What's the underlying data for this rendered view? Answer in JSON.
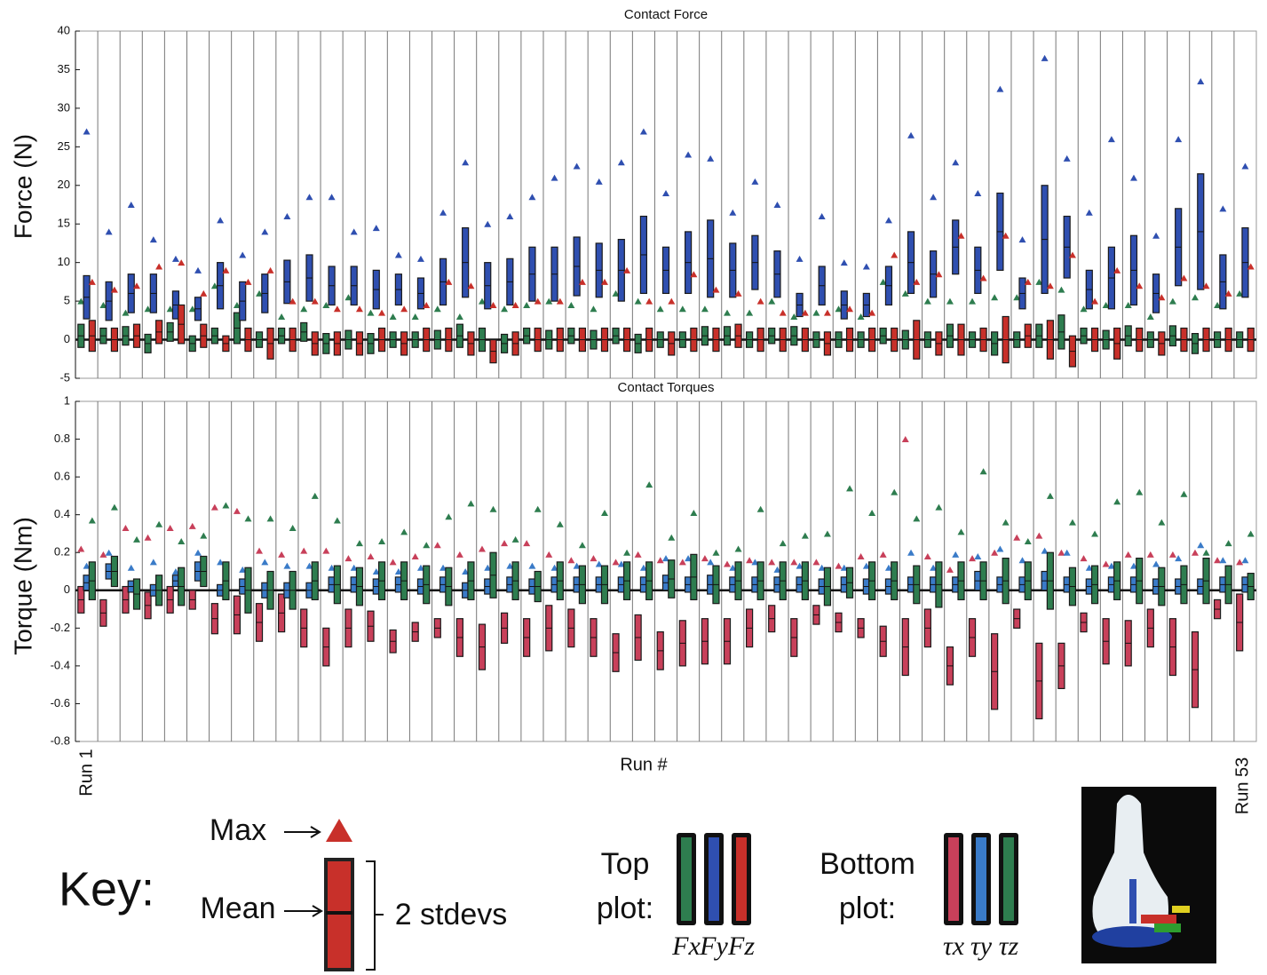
{
  "chart_data": [
    {
      "type": "box",
      "title": "Contact Force",
      "y_label": "Force (N)",
      "x_label": "Run #",
      "ylim": [
        -5,
        40
      ],
      "yticks": [
        40,
        35,
        30,
        25,
        20,
        15,
        10,
        5,
        0,
        -5
      ],
      "zero_line": 0,
      "categories": [
        "Run 1",
        null,
        null,
        null,
        null,
        null,
        null,
        null,
        null,
        null,
        null,
        null,
        null,
        null,
        null,
        null,
        null,
        null,
        null,
        null,
        null,
        null,
        null,
        null,
        null,
        null,
        null,
        null,
        null,
        null,
        null,
        null,
        null,
        null,
        null,
        null,
        null,
        null,
        null,
        null,
        null,
        null,
        null,
        null,
        null,
        null,
        null,
        null,
        null,
        null,
        null,
        null,
        "Run 53"
      ],
      "series": [
        {
          "name": "Fx",
          "color": "#2e7d4f",
          "mean": [
            0.5,
            0.5,
            0.5,
            -0.5,
            1,
            -0.5,
            0.5,
            1.5,
            0,
            0.5,
            1,
            -0.5,
            0,
            -0.5,
            0,
            0,
            0,
            0.5,
            0,
            -0.5,
            0.5,
            0,
            0.5,
            0,
            0.5,
            -0.5,
            0,
            0,
            0.5,
            0.5,
            0,
            0.5,
            0.5,
            0,
            0,
            0,
            0.5,
            0,
            0,
            0.5,
            0,
            -0.5,
            0,
            0.5,
            1,
            0.5,
            0,
            0.5,
            0,
            0.5,
            -0.5,
            0,
            0
          ],
          "stdev": [
            1.5,
            1,
            1.2,
            1.2,
            1.2,
            1,
            1,
            2,
            1,
            1,
            1.2,
            1.3,
            1.2,
            1.3,
            1,
            1,
            1.2,
            1.5,
            1.5,
            1.2,
            1,
            1.2,
            1,
            1.2,
            1,
            1.2,
            1,
            1,
            1.2,
            1.2,
            1,
            1,
            1.2,
            1,
            1,
            1,
            1,
            1.2,
            1,
            1.5,
            1,
            1.5,
            1,
            1.5,
            2.2,
            1,
            1.2,
            1.3,
            1,
            1.3,
            1.3,
            1,
            1
          ],
          "max": [
            5,
            4.5,
            3.5,
            4,
            4,
            4,
            7,
            4.5,
            6,
            3,
            4,
            4.5,
            5.5,
            3.5,
            3,
            3,
            4,
            3,
            5,
            4,
            4.5,
            5,
            4.5,
            4,
            6,
            5,
            4,
            4,
            4,
            3.5,
            3.5,
            5,
            3,
            3.5,
            4,
            3,
            7.5,
            6,
            5,
            5,
            5,
            5.5,
            5.5,
            7.5,
            6.5,
            4,
            4.5,
            4.5,
            3,
            5,
            5.5,
            4.5,
            6
          ]
        },
        {
          "name": "Fy",
          "color": "#2f4fb0",
          "mean": [
            5.5,
            5,
            6,
            6,
            4.5,
            4,
            7,
            5,
            6,
            7.5,
            8,
            7,
            7,
            6.5,
            6.5,
            6,
            7.5,
            10,
            7,
            7.5,
            8.5,
            8.5,
            9.5,
            9,
            9,
            11,
            9,
            10,
            10.5,
            9,
            10,
            8.5,
            4.5,
            7,
            4.5,
            4.5,
            7,
            10,
            8.5,
            12,
            9,
            14,
            6,
            13,
            12,
            6.5,
            8,
            9,
            6,
            12,
            14,
            7.5,
            10
          ],
          "stdev": [
            2.8,
            2.5,
            2.5,
            2.5,
            1.8,
            1.5,
            3,
            2.5,
            2.5,
            2.8,
            3,
            2.5,
            2.5,
            2.5,
            2,
            2,
            3,
            4.5,
            3,
            3,
            3.5,
            3.5,
            3.8,
            3.5,
            4,
            5,
            3,
            4,
            5,
            3.5,
            3.5,
            3,
            1.5,
            2.5,
            1.8,
            1.5,
            2.5,
            4,
            3,
            3.5,
            3,
            5,
            2,
            7,
            4,
            2.5,
            4,
            4.5,
            2.5,
            5,
            7.5,
            3.5,
            4.5
          ],
          "max": [
            27,
            14,
            17.5,
            13,
            10.5,
            9,
            15.5,
            11,
            14,
            16,
            18.5,
            18.5,
            14,
            14.5,
            11,
            10.5,
            16.5,
            23,
            15,
            16,
            18.5,
            21,
            22.5,
            20.5,
            23,
            27,
            19,
            24,
            23.5,
            16.5,
            20.5,
            17.5,
            10.5,
            16,
            10,
            9.5,
            15.5,
            26.5,
            18.5,
            23,
            19,
            32.5,
            13,
            36.5,
            23.5,
            16.5,
            26,
            21,
            13.5,
            26,
            33.5,
            17,
            22.5
          ]
        },
        {
          "name": "Fz",
          "color": "#c8302a",
          "mean": [
            0.5,
            0,
            0.5,
            1,
            2,
            0.5,
            -0.5,
            0,
            -0.5,
            0,
            -0.5,
            -0.5,
            -0.5,
            0,
            -0.5,
            0,
            0,
            -0.5,
            -1.5,
            -0.5,
            0,
            0,
            0,
            0,
            0,
            0,
            -0.5,
            0,
            0,
            0.5,
            0,
            0,
            0,
            -0.5,
            0,
            0,
            0,
            0,
            -0.5,
            0,
            0,
            0,
            0.5,
            0,
            -1.5,
            0,
            -0.5,
            0,
            -0.5,
            0,
            0,
            0,
            0
          ],
          "stdev": [
            2,
            1.5,
            1.5,
            1.5,
            2.5,
            1.5,
            1,
            1.5,
            2,
            1.5,
            1.5,
            1.5,
            1.5,
            1.5,
            1.5,
            1.5,
            1.5,
            1.5,
            1.5,
            1.5,
            1.5,
            1.5,
            1.5,
            1.5,
            1.5,
            1.5,
            1.5,
            1.5,
            1.5,
            1.5,
            1.5,
            1.5,
            1.5,
            1.5,
            1.5,
            1.5,
            1.5,
            2.5,
            1.5,
            2,
            1.5,
            3,
            1.5,
            2.5,
            2,
            1.5,
            2,
            1.5,
            1.5,
            1.5,
            1.5,
            1.5,
            1.5
          ],
          "max": [
            7.5,
            6.5,
            7,
            9.5,
            10,
            6,
            9,
            7.5,
            9,
            5,
            5,
            4,
            4,
            3.5,
            4,
            4.5,
            7.5,
            7,
            4.5,
            4.5,
            5,
            5,
            7.5,
            7.5,
            9,
            5,
            5,
            8.5,
            6.5,
            6,
            5,
            3.5,
            3.5,
            3.5,
            4,
            3.5,
            11,
            7.5,
            8.5,
            13.5,
            8,
            13.5,
            7.5,
            7,
            11,
            5,
            9,
            7,
            5.5,
            8,
            7,
            6,
            9.5
          ]
        }
      ]
    },
    {
      "type": "box",
      "title": "Contact Torques",
      "y_label": "Torque (Nm)",
      "ylim": [
        -0.8,
        1
      ],
      "yticks": [
        1,
        0.8,
        0.6,
        0.4,
        0.2,
        0,
        -0.2,
        -0.4,
        -0.6,
        -0.8
      ],
      "zero_line": 0,
      "series": [
        {
          "name": "τx",
          "color": "#c8405a",
          "mean": [
            -0.05,
            -0.12,
            -0.05,
            -0.08,
            -0.05,
            -0.05,
            -0.15,
            -0.13,
            -0.17,
            -0.12,
            -0.2,
            -0.3,
            -0.2,
            -0.19,
            -0.27,
            -0.22,
            -0.2,
            -0.25,
            -0.3,
            -0.2,
            -0.25,
            -0.2,
            -0.2,
            -0.25,
            -0.33,
            -0.25,
            -0.32,
            -0.28,
            -0.27,
            -0.27,
            -0.2,
            -0.15,
            -0.25,
            -0.13,
            -0.17,
            -0.2,
            -0.27,
            -0.3,
            -0.2,
            -0.4,
            -0.25,
            -0.43,
            -0.15,
            -0.48,
            -0.4,
            -0.17,
            -0.27,
            -0.28,
            -0.2,
            -0.3,
            -0.42,
            -0.1,
            -0.17
          ],
          "stdev": [
            0.07,
            0.07,
            0.07,
            0.07,
            0.07,
            0.05,
            0.08,
            0.1,
            0.1,
            0.1,
            0.1,
            0.1,
            0.1,
            0.08,
            0.06,
            0.05,
            0.05,
            0.1,
            0.12,
            0.08,
            0.1,
            0.12,
            0.1,
            0.1,
            0.1,
            0.12,
            0.1,
            0.12,
            0.12,
            0.12,
            0.1,
            0.07,
            0.1,
            0.05,
            0.05,
            0.05,
            0.08,
            0.15,
            0.1,
            0.1,
            0.1,
            0.2,
            0.05,
            0.2,
            0.12,
            0.05,
            0.12,
            0.12,
            0.1,
            0.15,
            0.2,
            0.05,
            0.15
          ],
          "max": [
            0.22,
            0.19,
            0.33,
            0.28,
            0.33,
            0.34,
            0.44,
            0.42,
            0.21,
            0.19,
            0.21,
            0.21,
            0.17,
            0.18,
            0.15,
            0.18,
            0.24,
            0.19,
            0.22,
            0.25,
            0.25,
            0.19,
            0.16,
            0.17,
            0.15,
            0.19,
            0.16,
            0.15,
            0.17,
            0.14,
            0.16,
            0.15,
            0.15,
            0.15,
            0.13,
            0.18,
            0.19,
            0.8,
            0.18,
            0.11,
            0.17,
            0.2,
            0.28,
            0.29,
            0.2,
            0.17,
            0.14,
            0.19,
            0.19,
            0.19,
            0.2,
            0.16,
            0.15
          ]
        },
        {
          "name": "τy",
          "color": "#3a7bc8",
          "mean": [
            0.04,
            0.1,
            0.02,
            0,
            0.05,
            0.1,
            0,
            0.02,
            0,
            0,
            0,
            0.03,
            0.03,
            0.02,
            0.03,
            0.02,
            0.03,
            0,
            0.02,
            0.03,
            0.02,
            0.03,
            0.03,
            0.03,
            0.03,
            0.03,
            0.04,
            0.03,
            0.03,
            0.03,
            0.03,
            0.03,
            0.03,
            0.02,
            0.03,
            0.02,
            0.02,
            0.03,
            0.03,
            0.03,
            0.05,
            0.03,
            0.03,
            0.05,
            0.03,
            0.02,
            0.03,
            0.03,
            0.02,
            0.02,
            0.02,
            0.03,
            0.03
          ],
          "stdev": [
            0.04,
            0.04,
            0.03,
            0.03,
            0.03,
            0.05,
            0.03,
            0.04,
            0.04,
            0.04,
            0.04,
            0.04,
            0.04,
            0.04,
            0.04,
            0.04,
            0.04,
            0.04,
            0.04,
            0.04,
            0.04,
            0.04,
            0.04,
            0.04,
            0.04,
            0.04,
            0.04,
            0.04,
            0.05,
            0.04,
            0.04,
            0.04,
            0.04,
            0.04,
            0.04,
            0.04,
            0.04,
            0.04,
            0.04,
            0.04,
            0.05,
            0.04,
            0.04,
            0.05,
            0.04,
            0.04,
            0.04,
            0.04,
            0.04,
            0.04,
            0.04,
            0.04,
            0.04
          ],
          "max": [
            0.13,
            0.2,
            0.12,
            0.15,
            0.1,
            0.2,
            0.15,
            0.11,
            0.15,
            0.13,
            0.13,
            0.12,
            0.12,
            0.1,
            0.1,
            0.12,
            0.12,
            0.1,
            0.12,
            0.13,
            0.13,
            0.12,
            0.13,
            0.14,
            0.14,
            0.12,
            0.17,
            0.17,
            0.15,
            0.12,
            0.15,
            0.11,
            0.13,
            0.12,
            0.12,
            0.13,
            0.12,
            0.2,
            0.12,
            0.19,
            0.18,
            0.22,
            0.16,
            0.21,
            0.2,
            0.12,
            0.13,
            0.13,
            0.14,
            0.17,
            0.24,
            0.16,
            0.16
          ]
        },
        {
          "name": "τz",
          "color": "#2e7d4f",
          "mean": [
            0.05,
            0.1,
            -0.02,
            0,
            0.02,
            0.1,
            0.05,
            0,
            0,
            0,
            0.05,
            0.03,
            0.02,
            0.05,
            0.05,
            0.03,
            0.02,
            0.05,
            0.08,
            0.05,
            0.02,
            0.05,
            0.03,
            0.03,
            0.05,
            0.05,
            0.06,
            0.07,
            0.03,
            0.05,
            0.05,
            0.05,
            0.05,
            0.02,
            0.04,
            0.05,
            0.05,
            0.03,
            0.03,
            0.05,
            0.05,
            0.05,
            0.05,
            0.05,
            0.02,
            0.03,
            0.05,
            0.05,
            0.02,
            0.03,
            0.05,
            0.03,
            0.02
          ],
          "stdev": [
            0.1,
            0.08,
            0.08,
            0.08,
            0.1,
            0.08,
            0.1,
            0.12,
            0.1,
            0.1,
            0.1,
            0.1,
            0.1,
            0.1,
            0.1,
            0.1,
            0.1,
            0.1,
            0.12,
            0.1,
            0.08,
            0.1,
            0.1,
            0.1,
            0.1,
            0.1,
            0.1,
            0.12,
            0.1,
            0.1,
            0.1,
            0.1,
            0.1,
            0.1,
            0.08,
            0.1,
            0.1,
            0.1,
            0.12,
            0.1,
            0.1,
            0.12,
            0.1,
            0.15,
            0.1,
            0.1,
            0.1,
            0.12,
            0.1,
            0.1,
            0.12,
            0.1,
            0.07
          ],
          "max": [
            0.37,
            0.44,
            0.27,
            0.35,
            0.26,
            0.29,
            0.45,
            0.38,
            0.38,
            0.33,
            0.5,
            0.37,
            0.25,
            0.26,
            0.31,
            0.24,
            0.39,
            0.46,
            0.43,
            0.27,
            0.43,
            0.35,
            0.24,
            0.41,
            0.2,
            0.56,
            0.28,
            0.41,
            0.2,
            0.22,
            0.43,
            0.25,
            0.29,
            0.3,
            0.54,
            0.41,
            0.52,
            0.38,
            0.44,
            0.31,
            0.63,
            0.36,
            0.26,
            0.5,
            0.36,
            0.3,
            0.47,
            0.52,
            0.36,
            0.51,
            0.2,
            0.25,
            0.3
          ]
        }
      ]
    }
  ],
  "key": {
    "title": "Key:",
    "max": "Max",
    "mean": "Mean",
    "range": "2 stdevs",
    "top": [
      "Top",
      "plot:"
    ],
    "bottom": [
      "Bottom",
      "plot:"
    ]
  }
}
